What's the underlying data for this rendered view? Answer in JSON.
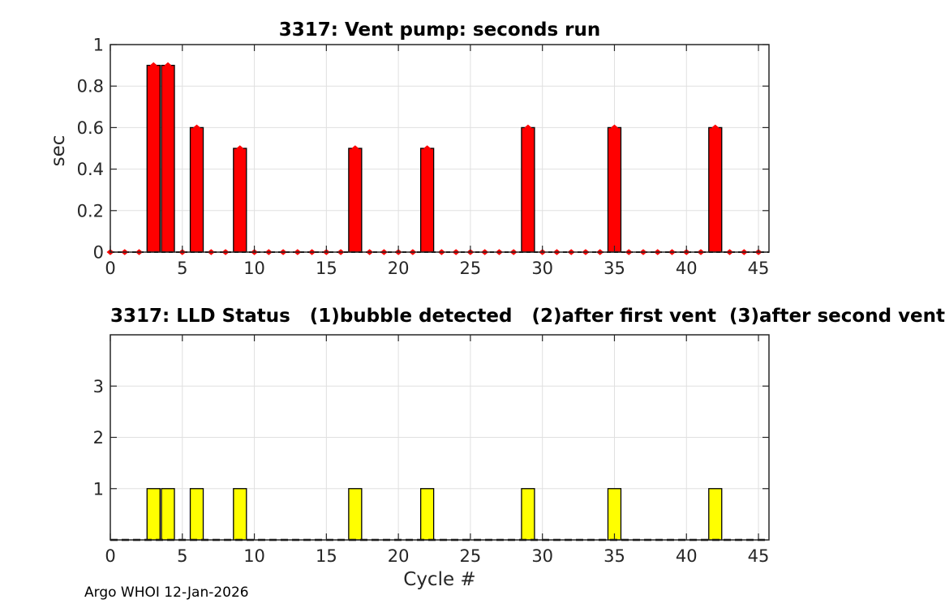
{
  "footer": "Argo WHOI 12-Jan-2026",
  "colors": {
    "red_bar": "#ff0000",
    "yellow_bar": "#ffff00",
    "marker": "#ff0000",
    "bar_edge": "#000000",
    "baseline": "#000000",
    "grid": "#e0e0e0",
    "axis": "#262626",
    "tick_text": "#262626"
  },
  "chart_data": [
    {
      "type": "bar",
      "title": "3317: Vent pump: seconds run",
      "xlabel": "",
      "ylabel": "sec",
      "x": [
        0,
        1,
        2,
        3,
        4,
        5,
        6,
        7,
        8,
        9,
        10,
        11,
        12,
        13,
        14,
        15,
        16,
        17,
        18,
        19,
        20,
        21,
        22,
        23,
        24,
        25,
        26,
        27,
        28,
        29,
        30,
        31,
        32,
        33,
        34,
        35,
        36,
        37,
        38,
        39,
        40,
        41,
        42,
        43,
        44,
        45
      ],
      "values": [
        0,
        0,
        0,
        0.9,
        0.9,
        0,
        0.6,
        0,
        0,
        0.5,
        0,
        0,
        0,
        0,
        0,
        0,
        0,
        0.5,
        0,
        0,
        0,
        0,
        0.5,
        0,
        0,
        0,
        0,
        0,
        0,
        0.6,
        0,
        0,
        0,
        0,
        0,
        0.6,
        0,
        0,
        0,
        0,
        0,
        0,
        0.6,
        0,
        0,
        0
      ],
      "bar_color": "#ff0000",
      "bar_rel_width": 0.9,
      "markers": {
        "shape": "diamond",
        "color": "#ff0000",
        "at_every_point": true
      },
      "baseline": {
        "style": "dashed",
        "color": "#000000",
        "width": 2,
        "dash": "5 4"
      },
      "xlim": [
        0,
        45.73
      ],
      "ylim": [
        0,
        1
      ],
      "xticks": [
        0,
        5,
        10,
        15,
        20,
        25,
        30,
        35,
        40,
        45
      ],
      "yticks": [
        0,
        0.2,
        0.4,
        0.6,
        0.8,
        1
      ],
      "grid": true,
      "legend": null
    },
    {
      "type": "bar",
      "title": "3317: LLD Status   (1)bubble detected   (2)after first vent  (3)after second vent",
      "xlabel": "Cycle #",
      "ylabel": "",
      "x": [
        0,
        1,
        2,
        3,
        4,
        5,
        6,
        7,
        8,
        9,
        10,
        11,
        12,
        13,
        14,
        15,
        16,
        17,
        18,
        19,
        20,
        21,
        22,
        23,
        24,
        25,
        26,
        27,
        28,
        29,
        30,
        31,
        32,
        33,
        34,
        35,
        36,
        37,
        38,
        39,
        40,
        41,
        42,
        43,
        44,
        45
      ],
      "values": [
        0,
        0,
        0,
        1,
        1,
        0,
        1,
        0,
        0,
        1,
        0,
        0,
        0,
        0,
        0,
        0,
        0,
        1,
        0,
        0,
        0,
        0,
        1,
        0,
        0,
        0,
        0,
        0,
        0,
        1,
        0,
        0,
        0,
        0,
        0,
        1,
        0,
        0,
        0,
        0,
        0,
        0,
        1,
        0,
        0,
        0
      ],
      "bar_color": "#ffff00",
      "bar_rel_width": 0.9,
      "markers": null,
      "baseline": {
        "style": "dashed",
        "color": "#000000",
        "width": 2.5,
        "dash": "9 5"
      },
      "xlim": [
        0,
        45.73
      ],
      "ylim": [
        0,
        4
      ],
      "xticks": [
        0,
        5,
        10,
        15,
        20,
        25,
        30,
        35,
        40,
        45
      ],
      "yticks": [
        1,
        2,
        3
      ],
      "grid": true,
      "legend": null
    }
  ]
}
